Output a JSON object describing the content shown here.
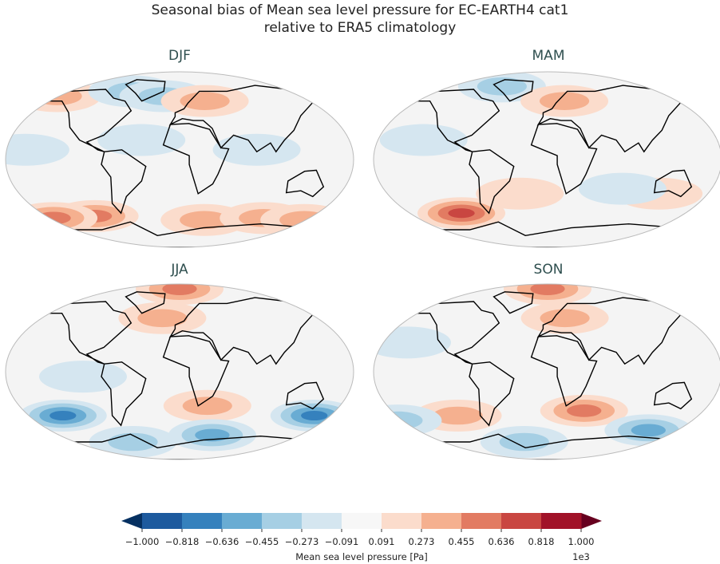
{
  "title": {
    "line1": "Seasonal bias of Mean sea level pressure for EC-EARTH4 cat1",
    "line2": "relative to ERA5 climatology"
  },
  "chart_data": {
    "type": "heatmap",
    "title": "Seasonal bias of Mean sea level pressure for EC-EARTH4 cat1 relative to ERA5 climatology",
    "projection": "Robinson",
    "panels": [
      {
        "name": "DJF",
        "anomalies": [
          {
            "lon": -100,
            "lat": -58,
            "value": 500
          },
          {
            "lon": -150,
            "lat": -60,
            "value": 400
          },
          {
            "lon": 30,
            "lat": -62,
            "value": 350
          },
          {
            "lon": 100,
            "lat": -60,
            "value": 300
          },
          {
            "lon": 150,
            "lat": -62,
            "value": 300
          },
          {
            "lon": -150,
            "lat": 65,
            "value": 300
          },
          {
            "lon": -60,
            "lat": 70,
            "value": -300
          },
          {
            "lon": -20,
            "lat": 65,
            "value": -200
          },
          {
            "lon": 30,
            "lat": 60,
            "value": 250
          },
          {
            "lon": -40,
            "lat": 20,
            "value": -150
          },
          {
            "lon": -160,
            "lat": 10,
            "value": -150
          },
          {
            "lon": 80,
            "lat": 10,
            "value": -100
          }
        ]
      },
      {
        "name": "MAM",
        "anomalies": [
          {
            "lon": -100,
            "lat": -55,
            "value": 550
          },
          {
            "lon": -60,
            "lat": 75,
            "value": -300
          },
          {
            "lon": 20,
            "lat": 60,
            "value": 200
          },
          {
            "lon": -30,
            "lat": -35,
            "value": 150
          },
          {
            "lon": 120,
            "lat": -35,
            "value": 150
          },
          {
            "lon": -130,
            "lat": 20,
            "value": -150
          },
          {
            "lon": 80,
            "lat": -30,
            "value": -120
          }
        ]
      },
      {
        "name": "JJA",
        "anomalies": [
          {
            "lon": -130,
            "lat": -45,
            "value": -650
          },
          {
            "lon": 150,
            "lat": -45,
            "value": -550
          },
          {
            "lon": 30,
            "lat": -35,
            "value": 300
          },
          {
            "lon": 0,
            "lat": 85,
            "value": 400
          },
          {
            "lon": -20,
            "lat": 55,
            "value": 250
          },
          {
            "lon": -100,
            "lat": -5,
            "value": -150
          },
          {
            "lon": 40,
            "lat": -65,
            "value": -400
          },
          {
            "lon": -60,
            "lat": -72,
            "value": -350
          }
        ]
      },
      {
        "name": "SON",
        "anomalies": [
          {
            "lon": 0,
            "lat": 85,
            "value": 450
          },
          {
            "lon": 20,
            "lat": 55,
            "value": 250
          },
          {
            "lon": -100,
            "lat": -45,
            "value": 350
          },
          {
            "lon": 40,
            "lat": -40,
            "value": 400
          },
          {
            "lon": -170,
            "lat": -50,
            "value": -300
          },
          {
            "lon": 120,
            "lat": -60,
            "value": -400
          },
          {
            "lon": -30,
            "lat": -72,
            "value": -350
          },
          {
            "lon": -150,
            "lat": 30,
            "value": -100
          }
        ]
      }
    ],
    "colorbar": {
      "label": "Mean sea level pressure [Pa]",
      "multiplier": "1e3",
      "ticks": [
        "−1.000",
        "−0.818",
        "−0.636",
        "−0.455",
        "−0.273",
        "−0.091",
        "0.091",
        "0.273",
        "0.455",
        "0.636",
        "0.818",
        "1.000"
      ],
      "colors": [
        "#1d5a9e",
        "#3581bd",
        "#69acd3",
        "#a6cfe4",
        "#d5e6f0",
        "#f7f7f7",
        "#fbdccc",
        "#f5b08f",
        "#e27b62",
        "#c94641",
        "#a11228"
      ],
      "extend_low": "#053061",
      "extend_high": "#67001f",
      "colormap": "RdBu_r",
      "range": [
        -1000,
        1000
      ]
    }
  }
}
